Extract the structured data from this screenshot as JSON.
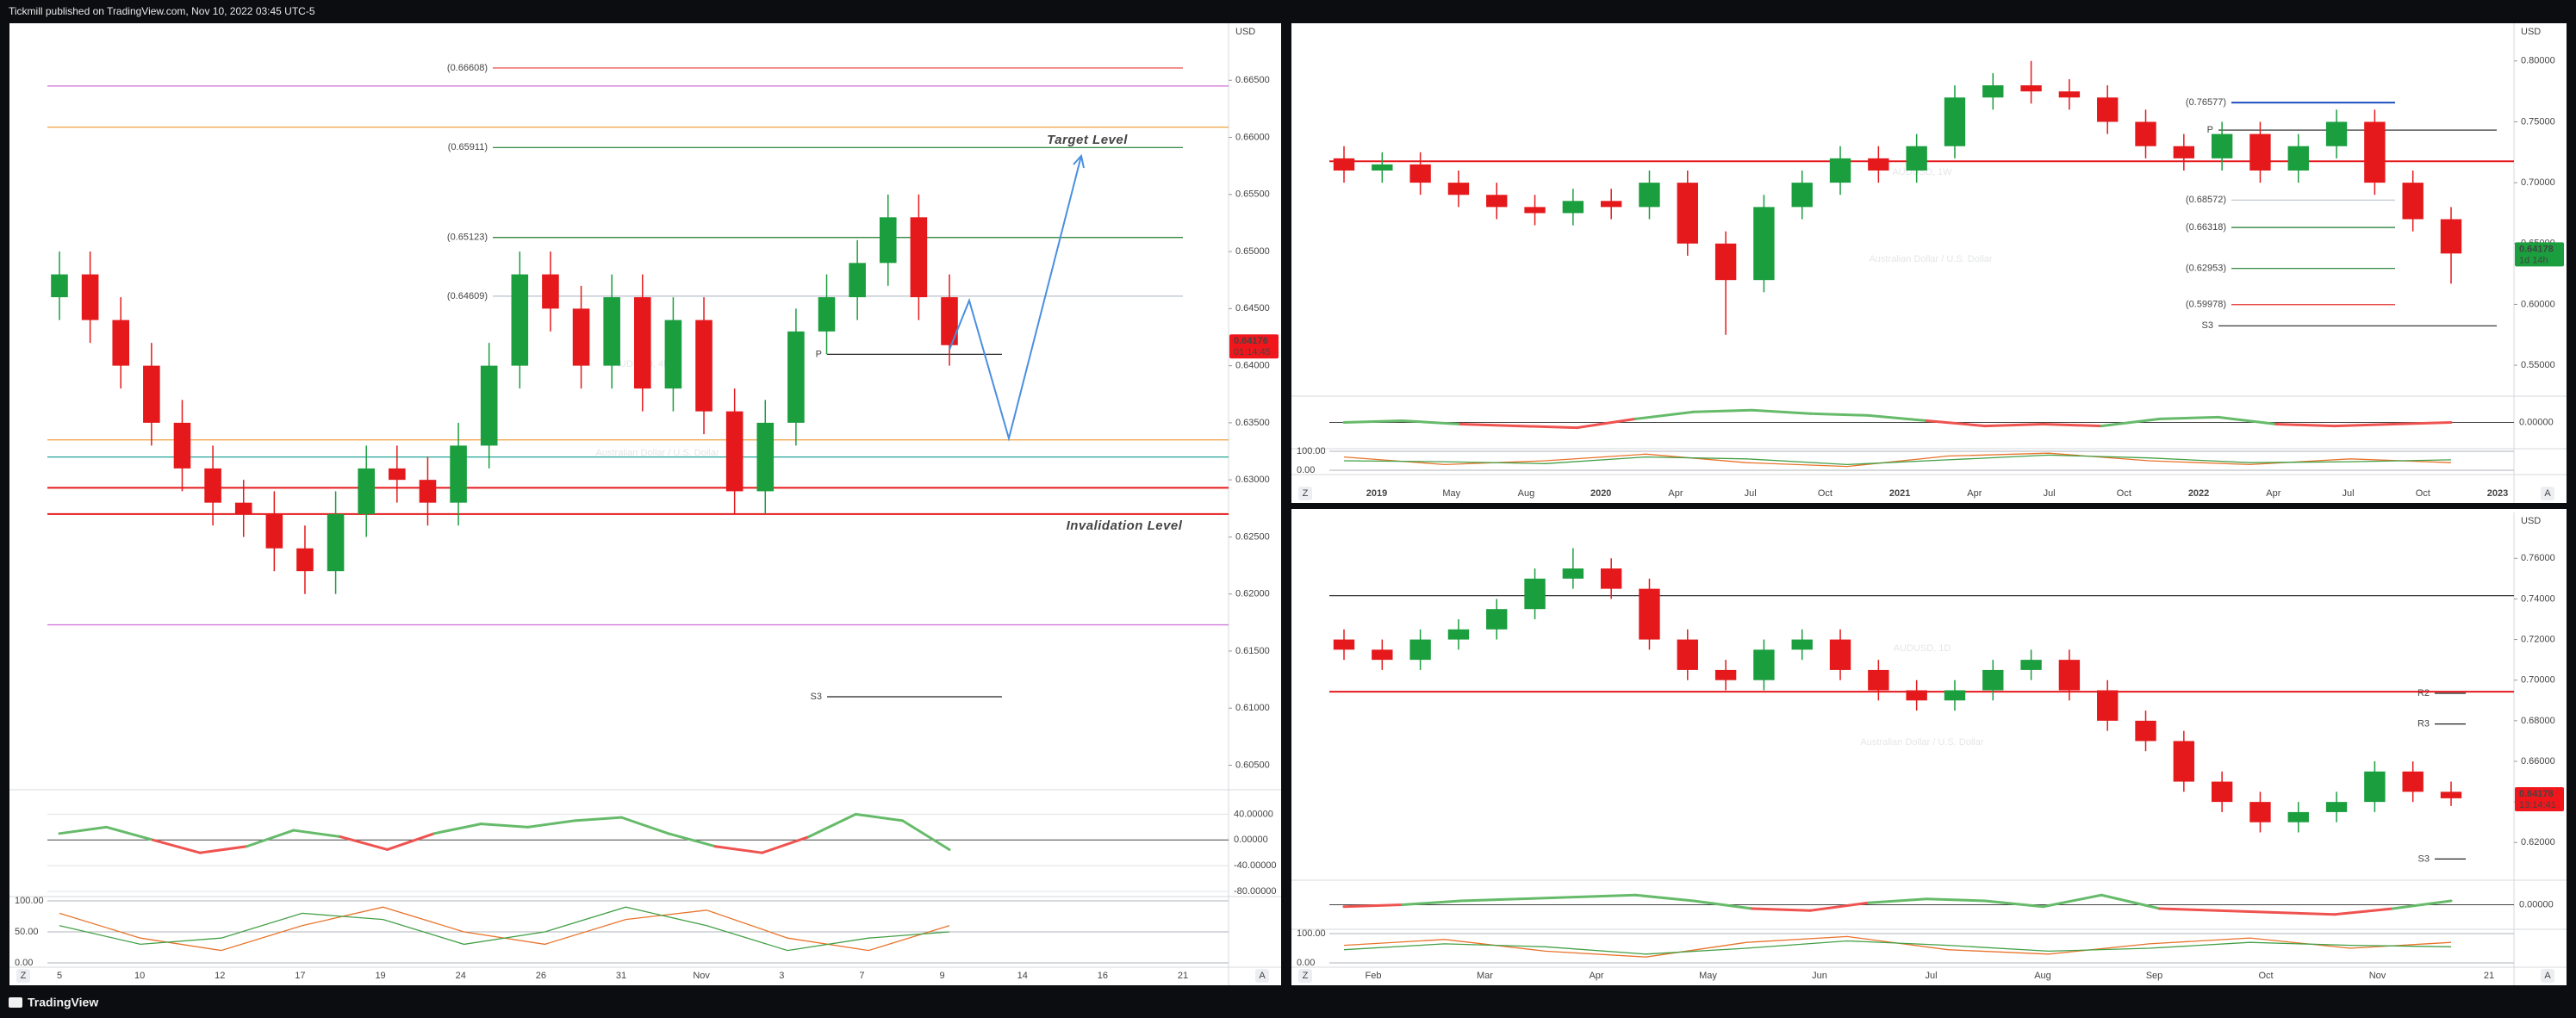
{
  "header": {
    "publisher": "Tickmill published on TradingView.com, Nov 10, 2022 03:45 UTC-5"
  },
  "footer": {
    "brand": "TradingView"
  },
  "controls": [
    "Z",
    "A"
  ],
  "chart_data": [
    {
      "type": "candlestick",
      "title": "AUDUSD, 4h",
      "subtitle": "Australian Dollar / U.S. Dollar",
      "currency": "USD",
      "up_color": "#1b9e3e",
      "down_color": "#e5191c",
      "ylim": [
        0.603,
        0.67
      ],
      "yticks": [
        {
          "value": 0.605,
          "label": "0.60500"
        },
        {
          "value": 0.61,
          "label": "0.61000"
        },
        {
          "value": 0.615,
          "label": "0.61500"
        },
        {
          "value": 0.62,
          "label": "0.62000"
        },
        {
          "value": 0.625,
          "label": "0.62500"
        },
        {
          "value": 0.63,
          "label": "0.63000"
        },
        {
          "value": 0.635,
          "label": "0.63500"
        },
        {
          "value": 0.64,
          "label": "0.64000"
        },
        {
          "value": 0.645,
          "label": "0.64500"
        },
        {
          "value": 0.65,
          "label": "0.65000"
        },
        {
          "value": 0.655,
          "label": "0.65500"
        },
        {
          "value": 0.66,
          "label": "0.66000"
        },
        {
          "value": 0.665,
          "label": "0.66500"
        }
      ],
      "xticks": [
        "5",
        "10",
        "12",
        "17",
        "19",
        "24",
        "26",
        "31",
        "Nov",
        "3",
        "7",
        "9",
        "14",
        "16",
        "21"
      ],
      "candles": {
        "open": [
          0.646,
          0.648,
          0.644,
          0.64,
          0.635,
          0.631,
          0.628,
          0.627,
          0.624,
          0.622,
          0.627,
          0.631,
          0.63,
          0.628,
          0.633,
          0.64,
          0.648,
          0.645,
          0.64,
          0.646,
          0.638,
          0.644,
          0.636,
          0.629,
          0.635,
          0.643,
          0.646,
          0.649,
          0.653,
          0.646
        ],
        "high": [
          0.65,
          0.65,
          0.646,
          0.642,
          0.637,
          0.633,
          0.63,
          0.629,
          0.626,
          0.629,
          0.633,
          0.633,
          0.632,
          0.635,
          0.642,
          0.65,
          0.65,
          0.647,
          0.648,
          0.648,
          0.646,
          0.646,
          0.638,
          0.637,
          0.645,
          0.648,
          0.651,
          0.655,
          0.655,
          0.648
        ],
        "low": [
          0.644,
          0.642,
          0.638,
          0.633,
          0.629,
          0.626,
          0.625,
          0.622,
          0.62,
          0.62,
          0.625,
          0.628,
          0.626,
          0.626,
          0.631,
          0.638,
          0.643,
          0.638,
          0.638,
          0.636,
          0.636,
          0.634,
          0.627,
          0.627,
          0.633,
          0.641,
          0.644,
          0.647,
          0.644,
          0.64
        ],
        "close": [
          0.648,
          0.644,
          0.64,
          0.635,
          0.631,
          0.628,
          0.627,
          0.624,
          0.622,
          0.627,
          0.631,
          0.63,
          0.628,
          0.633,
          0.64,
          0.648,
          0.645,
          0.64,
          0.646,
          0.638,
          0.644,
          0.636,
          0.629,
          0.635,
          0.643,
          0.646,
          0.649,
          0.653,
          0.646,
          0.6418
        ]
      },
      "levels": [
        {
          "value": 0.66608,
          "label": "(0.66608)",
          "color": "#e53935"
        },
        {
          "value": 0.65911,
          "label": "(0.65911)",
          "color": "#1b7a2e"
        },
        {
          "value": 0.65123,
          "label": "(0.65123)",
          "color": "#1b7a2e"
        },
        {
          "value": 0.64609,
          "label": "(0.64609)",
          "color": "#b8c2cc"
        },
        {
          "value": 0.641,
          "label": "P",
          "color": "#222222"
        },
        {
          "value": 0.611,
          "label": "S3",
          "color": "#222222"
        },
        {
          "value": 0.6645,
          "color": "#d06bd6"
        },
        {
          "value": 0.6609,
          "color": "#f0a040"
        },
        {
          "value": 0.6335,
          "color": "#f0a040"
        },
        {
          "value": 0.632,
          "color": "#26a69a"
        },
        {
          "value": 0.6293,
          "color": "#e5191c",
          "width": 2
        },
        {
          "value": 0.627,
          "color": "#e5191c",
          "width": 2
        },
        {
          "value": 0.6173,
          "color": "#d06bd6"
        }
      ],
      "annotations": [
        {
          "text": "Target Level",
          "color": "#1b9e3e"
        },
        {
          "text": "Invalidation Level",
          "color": "#e5191c"
        }
      ],
      "last_price": {
        "value": 0.64176,
        "label": "0.64176",
        "countdown": "01:14:45",
        "color": "#f0161b"
      },
      "oscillator": {
        "ylim": [
          -80,
          70
        ],
        "yticks": [
          {
            "value": 40,
            "label": "40.00000"
          },
          {
            "value": 0,
            "label": "0.00000"
          },
          {
            "value": -40,
            "label": "-40.00000"
          },
          {
            "value": -80,
            "label": "-80.00000"
          }
        ],
        "values": [
          10,
          20,
          0,
          -20,
          -10,
          15,
          5,
          -15,
          10,
          25,
          20,
          30,
          35,
          10,
          -10,
          -20,
          5,
          40,
          30,
          -15
        ]
      },
      "stochastic": {
        "ylim": [
          0,
          100
        ],
        "yticks": [
          {
            "value": 100,
            "label": "100.00"
          },
          {
            "value": 50,
            "label": "50.00"
          },
          {
            "value": 0,
            "label": "0.00"
          }
        ],
        "series": [
          {
            "color": "#e8742c",
            "values": [
              80,
              40,
              20,
              60,
              90,
              50,
              30,
              70,
              85,
              40,
              20,
              60
            ]
          },
          {
            "color": "#43a047",
            "values": [
              60,
              30,
              40,
              80,
              70,
              30,
              50,
              90,
              60,
              20,
              40,
              50
            ]
          }
        ]
      }
    },
    {
      "type": "candlestick",
      "title": "AUDUSD, 1W",
      "subtitle": "Australian Dollar / U.S. Dollar",
      "currency": "USD",
      "up_color": "#1b9e3e",
      "down_color": "#e5191c",
      "ylim": [
        0.526,
        0.831
      ],
      "yticks": [
        {
          "value": 0.55,
          "label": "0.55000"
        },
        {
          "value": 0.6,
          "label": "0.60000"
        },
        {
          "value": 0.65,
          "label": "0.65000"
        },
        {
          "value": 0.7,
          "label": "0.70000"
        },
        {
          "value": 0.75,
          "label": "0.75000"
        },
        {
          "value": 0.8,
          "label": "0.80000"
        }
      ],
      "xticks": [
        "2019",
        "May",
        "Aug",
        "2020",
        "Apr",
        "Jul",
        "Oct",
        "2021",
        "Apr",
        "Jul",
        "Oct",
        "2022",
        "Apr",
        "Jul",
        "Oct",
        "2023"
      ],
      "candles": {
        "open": [
          0.72,
          0.71,
          0.715,
          0.7,
          0.69,
          0.68,
          0.675,
          0.685,
          0.68,
          0.7,
          0.65,
          0.62,
          0.68,
          0.7,
          0.72,
          0.71,
          0.73,
          0.77,
          0.78,
          0.775,
          0.77,
          0.75,
          0.73,
          0.72,
          0.74,
          0.71,
          0.73,
          0.75,
          0.7,
          0.67
        ],
        "high": [
          0.73,
          0.725,
          0.725,
          0.71,
          0.7,
          0.69,
          0.695,
          0.695,
          0.71,
          0.71,
          0.66,
          0.69,
          0.71,
          0.73,
          0.73,
          0.74,
          0.78,
          0.79,
          0.8,
          0.785,
          0.78,
          0.76,
          0.74,
          0.75,
          0.75,
          0.74,
          0.76,
          0.76,
          0.71,
          0.68
        ],
        "low": [
          0.7,
          0.7,
          0.69,
          0.68,
          0.67,
          0.665,
          0.665,
          0.67,
          0.67,
          0.64,
          0.575,
          0.61,
          0.67,
          0.69,
          0.7,
          0.7,
          0.72,
          0.76,
          0.765,
          0.76,
          0.74,
          0.72,
          0.71,
          0.71,
          0.7,
          0.7,
          0.72,
          0.69,
          0.66,
          0.617
        ],
        "close": [
          0.71,
          0.715,
          0.7,
          0.69,
          0.68,
          0.675,
          0.685,
          0.68,
          0.7,
          0.65,
          0.62,
          0.68,
          0.7,
          0.72,
          0.71,
          0.73,
          0.77,
          0.78,
          0.775,
          0.77,
          0.75,
          0.73,
          0.72,
          0.74,
          0.71,
          0.73,
          0.75,
          0.7,
          0.67,
          0.6418
        ]
      },
      "levels": [
        {
          "value": 0.76577,
          "label": "(0.76577)",
          "color": "#1e4fbf",
          "width": 2
        },
        {
          "value": 0.68572,
          "label": "(0.68572)",
          "color": "#b8c2cc"
        },
        {
          "value": 0.66318,
          "label": "(0.66318)",
          "color": "#1b7a2e"
        },
        {
          "value": 0.62953,
          "label": "(0.62953)",
          "color": "#1b7a2e"
        },
        {
          "value": 0.59978,
          "label": "(0.59978)",
          "color": "#e53935"
        },
        {
          "value": 0.7432,
          "label": "P",
          "color": "#222222"
        },
        {
          "value": 0.5824,
          "label": "S3",
          "color": "#222222"
        },
        {
          "value": 0.7176,
          "color": "#e5191c",
          "width": 2
        }
      ],
      "annotations": [],
      "last_price": {
        "value": 0.64178,
        "label": "0.64178",
        "countdown": "1d 14h",
        "color": "#1b9e3e"
      },
      "oscillator": {
        "ylim": [
          -60,
          60
        ],
        "yticks": [
          {
            "value": 0,
            "label": "0.00000"
          }
        ],
        "values": [
          0,
          5,
          -5,
          -10,
          -15,
          10,
          30,
          35,
          25,
          20,
          5,
          -10,
          -5,
          -10,
          10,
          15,
          -5,
          -10,
          -5,
          0
        ]
      },
      "stochastic": {
        "ylim": [
          0,
          100
        ],
        "yticks": [
          {
            "value": 100,
            "label": "100.00"
          },
          {
            "value": 0,
            "label": "0.00"
          }
        ],
        "series": [
          {
            "color": "#e8742c",
            "values": [
              70,
              30,
              50,
              85,
              40,
              20,
              75,
              90,
              50,
              30,
              60,
              40
            ]
          },
          {
            "color": "#43a047",
            "values": [
              50,
              45,
              35,
              70,
              60,
              30,
              55,
              80,
              65,
              40,
              45,
              55
            ]
          }
        ]
      }
    },
    {
      "type": "candlestick",
      "title": "AUDUSD, 1D",
      "subtitle": "Australian Dollar / U.S. Dollar",
      "currency": "USD",
      "up_color": "#1b9e3e",
      "down_color": "#e5191c",
      "ylim": [
        0.6023,
        0.7826
      ],
      "yticks": [
        {
          "value": 0.62,
          "label": "0.62000"
        },
        {
          "value": 0.64,
          "label": "0.64000"
        },
        {
          "value": 0.66,
          "label": "0.66000"
        },
        {
          "value": 0.68,
          "label": "0.68000"
        },
        {
          "value": 0.7,
          "label": "0.70000"
        },
        {
          "value": 0.72,
          "label": "0.72000"
        },
        {
          "value": 0.74,
          "label": "0.74000"
        },
        {
          "value": 0.76,
          "label": "0.76000"
        }
      ],
      "xticks": [
        "Feb",
        "Mar",
        "Apr",
        "May",
        "Jun",
        "Jul",
        "Aug",
        "Sep",
        "Oct",
        "Nov",
        "21"
      ],
      "candles": {
        "open": [
          0.72,
          0.715,
          0.71,
          0.72,
          0.725,
          0.735,
          0.75,
          0.755,
          0.745,
          0.72,
          0.705,
          0.7,
          0.715,
          0.72,
          0.705,
          0.695,
          0.69,
          0.695,
          0.705,
          0.71,
          0.695,
          0.68,
          0.67,
          0.65,
          0.64,
          0.63,
          0.635,
          0.64,
          0.655,
          0.645
        ],
        "high": [
          0.725,
          0.72,
          0.725,
          0.73,
          0.74,
          0.755,
          0.765,
          0.76,
          0.75,
          0.725,
          0.71,
          0.72,
          0.725,
          0.725,
          0.71,
          0.7,
          0.7,
          0.71,
          0.715,
          0.715,
          0.7,
          0.685,
          0.675,
          0.655,
          0.645,
          0.64,
          0.645,
          0.66,
          0.66,
          0.65
        ],
        "low": [
          0.71,
          0.705,
          0.705,
          0.715,
          0.72,
          0.73,
          0.745,
          0.74,
          0.715,
          0.7,
          0.695,
          0.695,
          0.71,
          0.7,
          0.69,
          0.685,
          0.685,
          0.69,
          0.7,
          0.69,
          0.675,
          0.665,
          0.645,
          0.635,
          0.625,
          0.625,
          0.63,
          0.635,
          0.64,
          0.638
        ],
        "close": [
          0.715,
          0.71,
          0.72,
          0.725,
          0.735,
          0.75,
          0.755,
          0.745,
          0.72,
          0.705,
          0.7,
          0.715,
          0.72,
          0.705,
          0.695,
          0.69,
          0.695,
          0.705,
          0.71,
          0.695,
          0.68,
          0.67,
          0.65,
          0.64,
          0.63,
          0.635,
          0.64,
          0.655,
          0.645,
          0.6418
        ]
      },
      "levels": [
        {
          "value": 0.6935,
          "label": "R2",
          "color": "#222222"
        },
        {
          "value": 0.6784,
          "label": "R3",
          "color": "#222222"
        },
        {
          "value": 0.6119,
          "label": "S3",
          "color": "#222222"
        },
        {
          "value": 0.7416,
          "color": "#333333"
        },
        {
          "value": 0.6943,
          "color": "#e5191c",
          "width": 2
        }
      ],
      "annotations": [],
      "last_price": {
        "value": 0.64178,
        "label": "0.64178",
        "countdown": "13:14:41",
        "color": "#f0161b"
      },
      "oscillator": {
        "ylim": [
          -50,
          50
        ],
        "yticks": [
          {
            "value": 0,
            "label": "0.00000"
          }
        ],
        "values": [
          -5,
          0,
          10,
          15,
          20,
          25,
          10,
          -10,
          -15,
          5,
          15,
          10,
          -5,
          25,
          -10,
          -15,
          -20,
          -25,
          -10,
          10
        ]
      },
      "stochastic": {
        "ylim": [
          0,
          100
        ],
        "yticks": [
          {
            "value": 100,
            "label": "100.00"
          },
          {
            "value": 0,
            "label": "0.00"
          }
        ],
        "series": [
          {
            "color": "#e8742c",
            "values": [
              60,
              80,
              40,
              20,
              70,
              90,
              45,
              30,
              65,
              85,
              50,
              70
            ]
          },
          {
            "color": "#43a047",
            "values": [
              45,
              65,
              55,
              30,
              50,
              75,
              60,
              40,
              50,
              70,
              60,
              55
            ]
          }
        ]
      }
    }
  ]
}
